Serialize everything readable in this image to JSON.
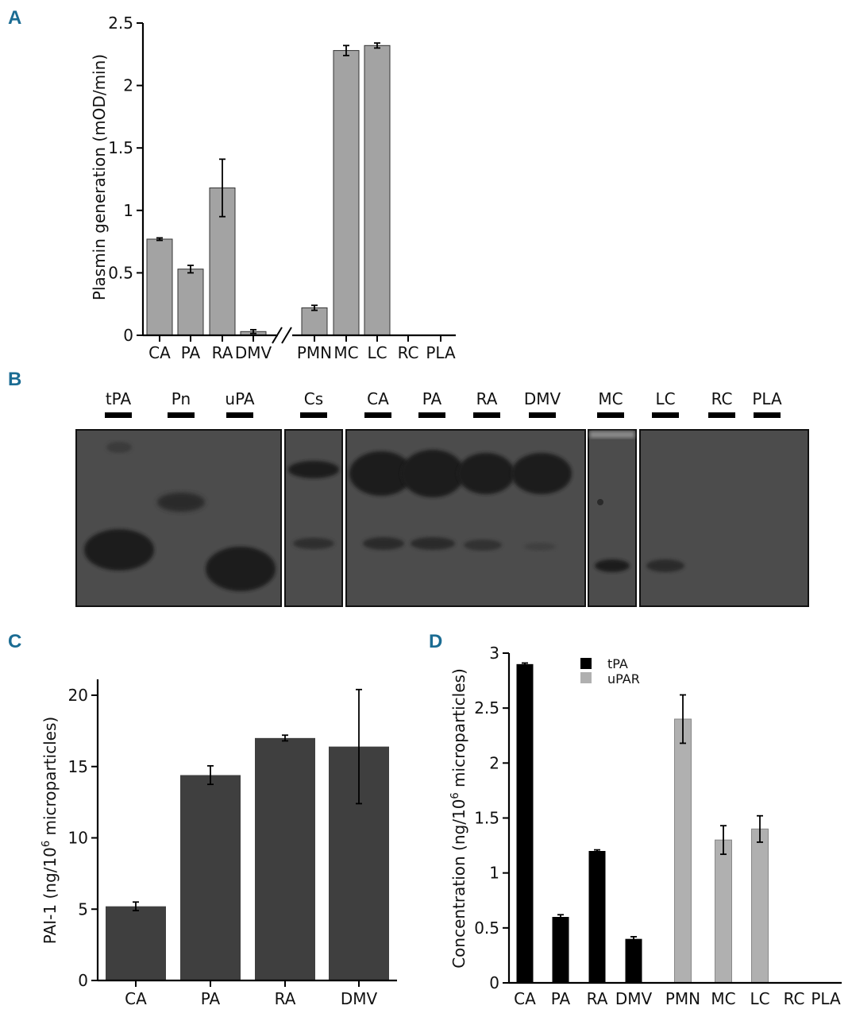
{
  "panels": {
    "a": {
      "letter": "A"
    },
    "b": {
      "letter": "B"
    },
    "c": {
      "letter": "C"
    },
    "d": {
      "letter": "D"
    }
  },
  "gel": {
    "lanes": [
      "tPA",
      "Pn",
      "uPA",
      "Cs",
      "CA",
      "PA",
      "RA",
      "DMV",
      "MC",
      "LC",
      "RC",
      "PLA"
    ]
  },
  "colors": {
    "gray_bar": "#a3a3a3",
    "dark_bar": "#3f3f3f",
    "black_bar": "#000000",
    "light_bar": "#b0b0b0",
    "gel_bg": "#4c4c4c",
    "gel_band": "#1e1e1e",
    "panel_letter": "#1b6c93"
  },
  "chart_data": [
    {
      "panel": "A",
      "type": "bar",
      "ylabel": "Plasmin generation (mOD/min)",
      "xlabel": "",
      "ylim": [
        0,
        2.5
      ],
      "yticks": [
        "0",
        "0.5",
        "1",
        "1.5",
        "2",
        "2.5"
      ],
      "axis_break_after": "DMV",
      "categories": [
        "CA",
        "PA",
        "RA",
        "DMV",
        "PMN",
        "MC",
        "LC",
        "RC",
        "PLA"
      ],
      "values": [
        0.77,
        0.53,
        1.18,
        0.03,
        0.22,
        2.28,
        2.32,
        0,
        0
      ],
      "errors": [
        0.01,
        0.03,
        0.23,
        0.015,
        0.02,
        0.04,
        0.02,
        0,
        0
      ],
      "grid": false
    },
    {
      "panel": "C",
      "type": "bar",
      "ylabel": "PAI-1 (ng/10",
      "ylabel_sup": "6",
      "ylabel_tail": " microparticles)",
      "xlabel": "",
      "ylim": [
        0,
        21
      ],
      "yticks": [
        "0",
        "5",
        "10",
        "15",
        "20"
      ],
      "categories": [
        "CA",
        "PA",
        "RA",
        "DMV"
      ],
      "values": [
        5.2,
        14.4,
        17.0,
        16.4
      ],
      "errors": [
        0.3,
        0.65,
        0.2,
        4.0
      ],
      "grid": false
    },
    {
      "panel": "D",
      "type": "bar",
      "ylabel": "Concentration (ng/10",
      "ylabel_sup": "6",
      "ylabel_tail": " microparticles)",
      "xlabel": "",
      "ylim": [
        0,
        3
      ],
      "yticks": [
        "0",
        "0.5",
        "1",
        "1.5",
        "2",
        "2.5",
        "3"
      ],
      "categories": [
        "CA",
        "PA",
        "RA",
        "DMV",
        "PMN",
        "MC",
        "LC",
        "RC",
        "PLA"
      ],
      "legend_position": "top-center",
      "series": [
        {
          "name": "tPA",
          "color": "#000000",
          "values": [
            2.9,
            0.6,
            1.2,
            0.4,
            0,
            0,
            0,
            0,
            0
          ],
          "errors": [
            0.01,
            0.02,
            0.01,
            0.02,
            0,
            0,
            0,
            0,
            0
          ]
        },
        {
          "name": "uPAR",
          "color": "#b0b0b0",
          "values": [
            0,
            0,
            0,
            0,
            2.4,
            1.3,
            1.4,
            0,
            0
          ],
          "errors": [
            0,
            0,
            0,
            0,
            0.22,
            0.13,
            0.12,
            0,
            0
          ]
        }
      ],
      "grid": false
    }
  ]
}
